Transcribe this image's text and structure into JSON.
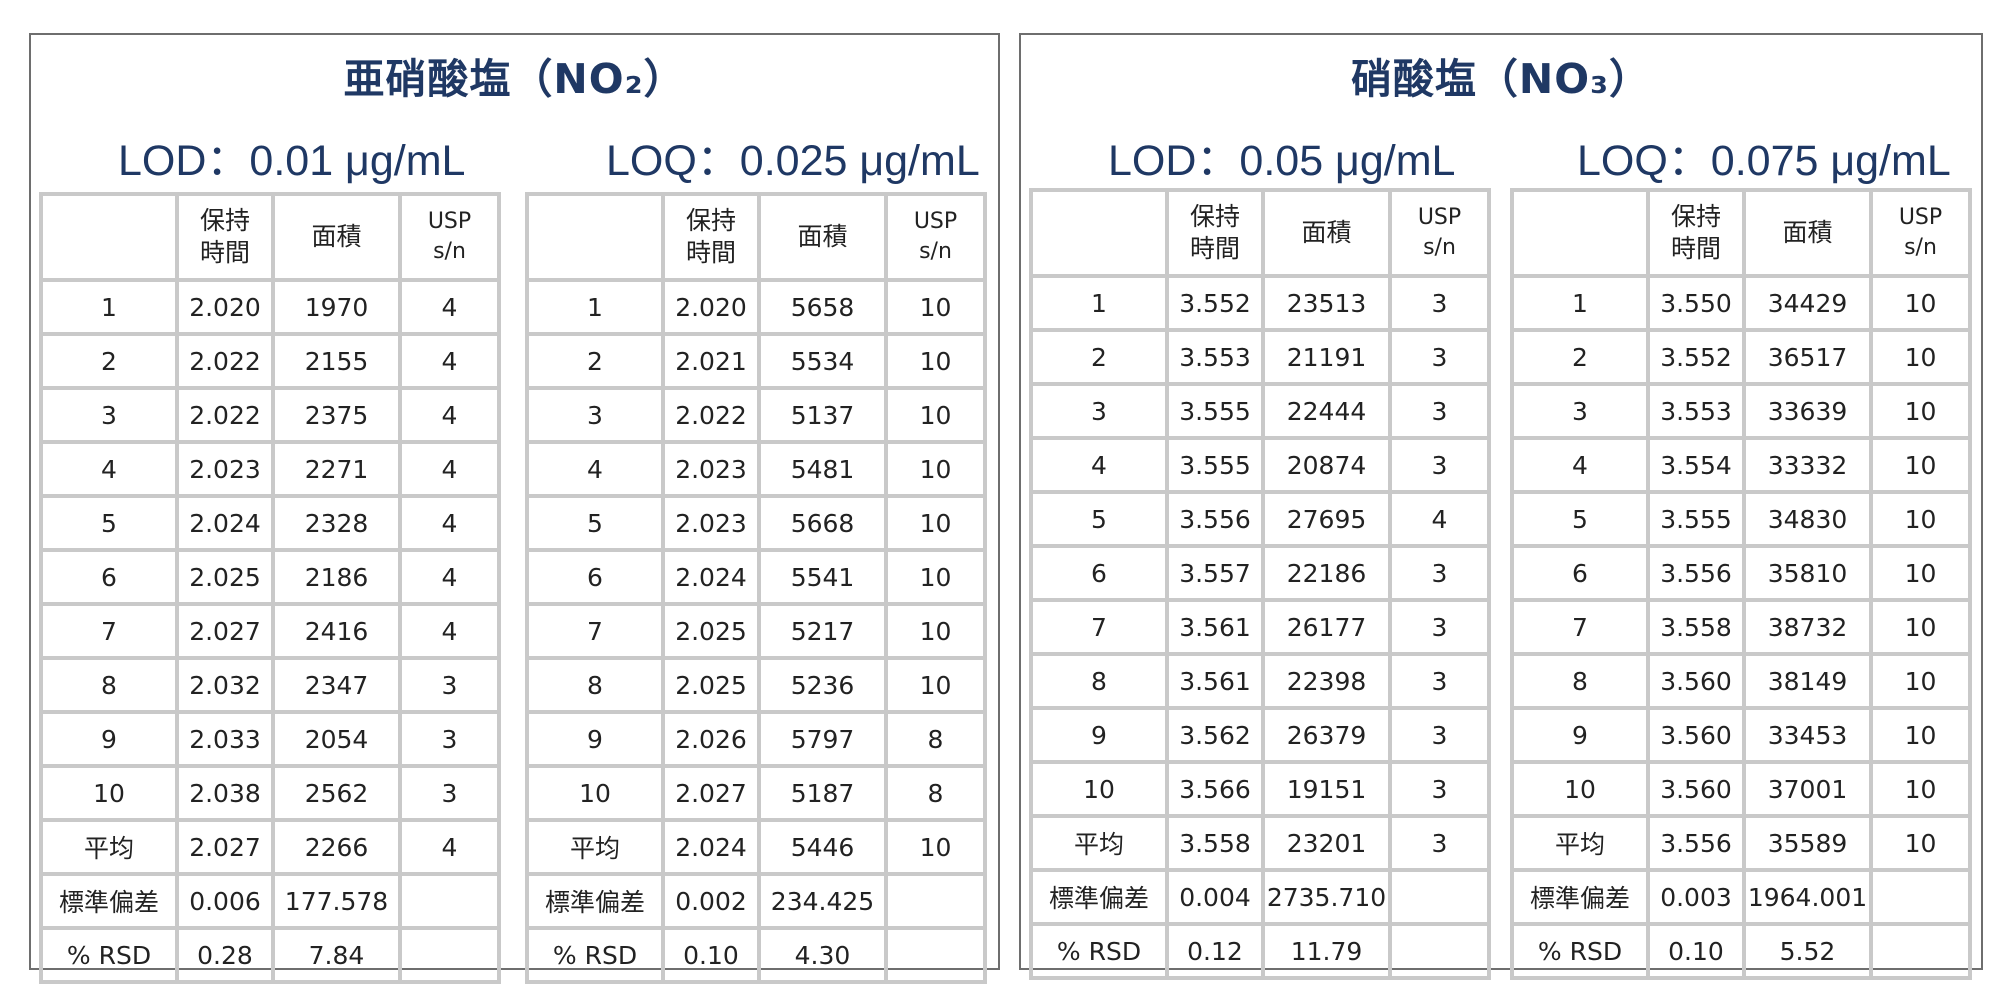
{
  "panels": [
    {
      "title": "亜硝酸塩（NO₂）",
      "lod": "LOD：0.01 μg/mL",
      "loq": "LOQ：0.025 μg/mL",
      "header": {
        "col1": "",
        "col2": "保持\n時間",
        "col3": "面積",
        "col4a": "USP",
        "col4b": "s/n"
      },
      "tables": [
        {
          "rows": [
            [
              "1",
              "2.020",
              "1970",
              "4"
            ],
            [
              "2",
              "2.022",
              "2155",
              "4"
            ],
            [
              "3",
              "2.022",
              "2375",
              "4"
            ],
            [
              "4",
              "2.023",
              "2271",
              "4"
            ],
            [
              "5",
              "2.024",
              "2328",
              "4"
            ],
            [
              "6",
              "2.025",
              "2186",
              "4"
            ],
            [
              "7",
              "2.027",
              "2416",
              "4"
            ],
            [
              "8",
              "2.032",
              "2347",
              "3"
            ],
            [
              "9",
              "2.033",
              "2054",
              "3"
            ],
            [
              "10",
              "2.038",
              "2562",
              "3"
            ],
            [
              "平均",
              "2.027",
              "2266",
              "4"
            ],
            [
              "標準偏差",
              "0.006",
              "177.578",
              ""
            ],
            [
              "% RSD",
              "0.28",
              "7.84",
              ""
            ]
          ]
        },
        {
          "rows": [
            [
              "1",
              "2.020",
              "5658",
              "10"
            ],
            [
              "2",
              "2.021",
              "5534",
              "10"
            ],
            [
              "3",
              "2.022",
              "5137",
              "10"
            ],
            [
              "4",
              "2.023",
              "5481",
              "10"
            ],
            [
              "5",
              "2.023",
              "5668",
              "10"
            ],
            [
              "6",
              "2.024",
              "5541",
              "10"
            ],
            [
              "7",
              "2.025",
              "5217",
              "10"
            ],
            [
              "8",
              "2.025",
              "5236",
              "10"
            ],
            [
              "9",
              "2.026",
              "5797",
              "8"
            ],
            [
              "10",
              "2.027",
              "5187",
              "8"
            ],
            [
              "平均",
              "2.024",
              "5446",
              "10"
            ],
            [
              "標準偏差",
              "0.002",
              "234.425",
              ""
            ],
            [
              "% RSD",
              "0.10",
              "4.30",
              ""
            ]
          ]
        }
      ]
    },
    {
      "title": "硝酸塩（NO₃）",
      "lod": "LOD：0.05 μg/mL",
      "loq": "LOQ：0.075 μg/mL",
      "header": {
        "col1": "",
        "col2": "保持\n時間",
        "col3": "面積",
        "col4a": "USP",
        "col4b": "s/n"
      },
      "tables": [
        {
          "rows": [
            [
              "1",
              "3.552",
              "23513",
              "3"
            ],
            [
              "2",
              "3.553",
              "21191",
              "3"
            ],
            [
              "3",
              "3.555",
              "22444",
              "3"
            ],
            [
              "4",
              "3.555",
              "20874",
              "3"
            ],
            [
              "5",
              "3.556",
              "27695",
              "4"
            ],
            [
              "6",
              "3.557",
              "22186",
              "3"
            ],
            [
              "7",
              "3.561",
              "26177",
              "3"
            ],
            [
              "8",
              "3.561",
              "22398",
              "3"
            ],
            [
              "9",
              "3.562",
              "26379",
              "3"
            ],
            [
              "10",
              "3.566",
              "19151",
              "3"
            ],
            [
              "平均",
              "3.558",
              "23201",
              "3"
            ],
            [
              "標準偏差",
              "0.004",
              "2735.710",
              ""
            ],
            [
              "% RSD",
              "0.12",
              "11.79",
              ""
            ]
          ]
        },
        {
          "rows": [
            [
              "1",
              "3.550",
              "34429",
              "10"
            ],
            [
              "2",
              "3.552",
              "36517",
              "10"
            ],
            [
              "3",
              "3.553",
              "33639",
              "10"
            ],
            [
              "4",
              "3.554",
              "33332",
              "10"
            ],
            [
              "5",
              "3.555",
              "34830",
              "10"
            ],
            [
              "6",
              "3.556",
              "35810",
              "10"
            ],
            [
              "7",
              "3.558",
              "38732",
              "10"
            ],
            [
              "8",
              "3.560",
              "38149",
              "10"
            ],
            [
              "9",
              "3.560",
              "33453",
              "10"
            ],
            [
              "10",
              "3.560",
              "37001",
              "10"
            ],
            [
              "平均",
              "3.556",
              "35589",
              "10"
            ],
            [
              "標準偏差",
              "0.003",
              "1964.001",
              ""
            ],
            [
              "% RSD",
              "0.10",
              "5.52",
              ""
            ]
          ]
        }
      ]
    }
  ]
}
